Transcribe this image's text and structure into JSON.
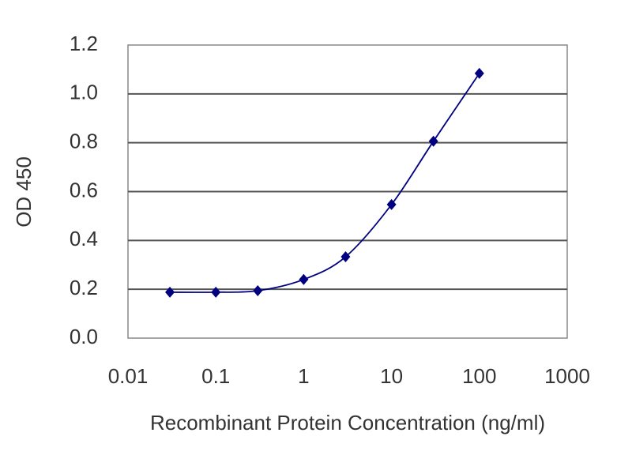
{
  "chart_data": {
    "type": "line",
    "x_label": "Recombinant Protein Concentration (ng/ml)",
    "y_label": "OD 450",
    "x": [
      0.03,
      0.1,
      0.3,
      1,
      3,
      10,
      30,
      100
    ],
    "series": [
      {
        "color": "#000080",
        "values": [
          0.188,
          0.188,
          0.194,
          0.24,
          0.333,
          0.547,
          0.806,
          1.084
        ]
      }
    ],
    "x_log": true,
    "xlim": [
      0.01,
      1000
    ],
    "xticks": [
      0.01,
      0.1,
      1,
      10,
      100,
      1000
    ],
    "ylim": [
      0,
      1.2
    ],
    "yticks": [
      {
        "value": 0,
        "label": "0.0"
      },
      0.2,
      0.4,
      0.6,
      0.8,
      {
        "value": 1,
        "label": "1.0"
      },
      1.2
    ],
    "grid": true
  }
}
